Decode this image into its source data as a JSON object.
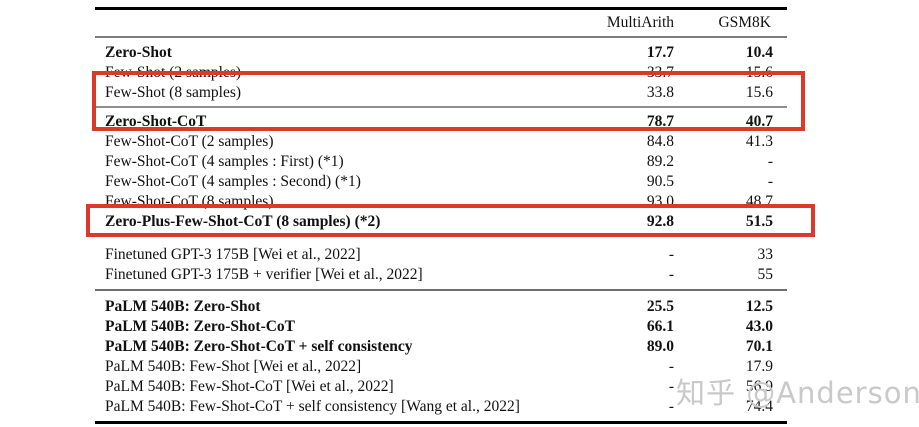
{
  "table": {
    "col_headers": [
      "MultiArith",
      "GSM8K"
    ],
    "sections": [
      {
        "rows": [
          {
            "label": "Zero-Shot",
            "multiarith": "17.7",
            "gsm8k": "10.4",
            "bold": true
          },
          {
            "label": "Few-Shot (2 samples)",
            "multiarith": "33.7",
            "gsm8k": "15.6",
            "bold": false
          },
          {
            "label": "Few-Shot (8 samples)",
            "multiarith": "33.8",
            "gsm8k": "15.6",
            "bold": false
          }
        ]
      },
      {
        "rows": [
          {
            "label": "Zero-Shot-CoT",
            "multiarith": "78.7",
            "gsm8k": "40.7",
            "bold": true
          },
          {
            "label": "Few-Shot-CoT (2 samples)",
            "multiarith": "84.8",
            "gsm8k": "41.3",
            "bold": false
          },
          {
            "label": "Few-Shot-CoT (4 samples : First) (*1)",
            "multiarith": "89.2",
            "gsm8k": "-",
            "bold": false
          },
          {
            "label": "Few-Shot-CoT (4 samples : Second) (*1)",
            "multiarith": "90.5",
            "gsm8k": "-",
            "bold": false
          },
          {
            "label": "Few-Shot-CoT (8 samples)",
            "multiarith": "93.0",
            "gsm8k": "48.7",
            "bold": false
          },
          {
            "label": "Zero-Plus-Few-Shot-CoT (8 samples) (*2)",
            "multiarith": "92.8",
            "gsm8k": "51.5",
            "bold": true
          }
        ]
      },
      {
        "rows": [
          {
            "label": "Finetuned GPT-3 175B [Wei et al., 2022]",
            "multiarith": "-",
            "gsm8k": "33",
            "bold": false
          },
          {
            "label": "Finetuned GPT-3 175B + verifier [Wei et al., 2022]",
            "multiarith": "-",
            "gsm8k": "55",
            "bold": false
          }
        ]
      },
      {
        "rows": [
          {
            "label": "PaLM 540B: Zero-Shot",
            "multiarith": "25.5",
            "gsm8k": "12.5",
            "bold": true
          },
          {
            "label": "PaLM 540B: Zero-Shot-CoT",
            "multiarith": "66.1",
            "gsm8k": "43.0",
            "bold": true
          },
          {
            "label": "PaLM 540B: Zero-Shot-CoT + self consistency",
            "multiarith": "89.0",
            "gsm8k": "70.1",
            "bold": true
          },
          {
            "label": "PaLM 540B: Few-Shot [Wei et al., 2022]",
            "multiarith": "-",
            "gsm8k": "17.9",
            "bold": false
          },
          {
            "label": "PaLM 540B: Few-Shot-CoT [Wei et al., 2022]",
            "multiarith": "-",
            "gsm8k": "56.9",
            "bold": false
          },
          {
            "label": "PaLM 540B: Few-Shot-CoT + self consistency [Wang et al., 2022]",
            "multiarith": "-",
            "gsm8k": "74.4",
            "bold": false
          }
        ]
      }
    ]
  },
  "annotations": {
    "box_color": "#d93a2b",
    "boxes": [
      {
        "name": "highlight-few-shot-8-and-zero-shot-cot"
      },
      {
        "name": "highlight-zero-plus-few-shot-cot"
      }
    ]
  },
  "watermark": {
    "text": "知乎 @Anderson",
    "color": "#c9c9c9"
  }
}
